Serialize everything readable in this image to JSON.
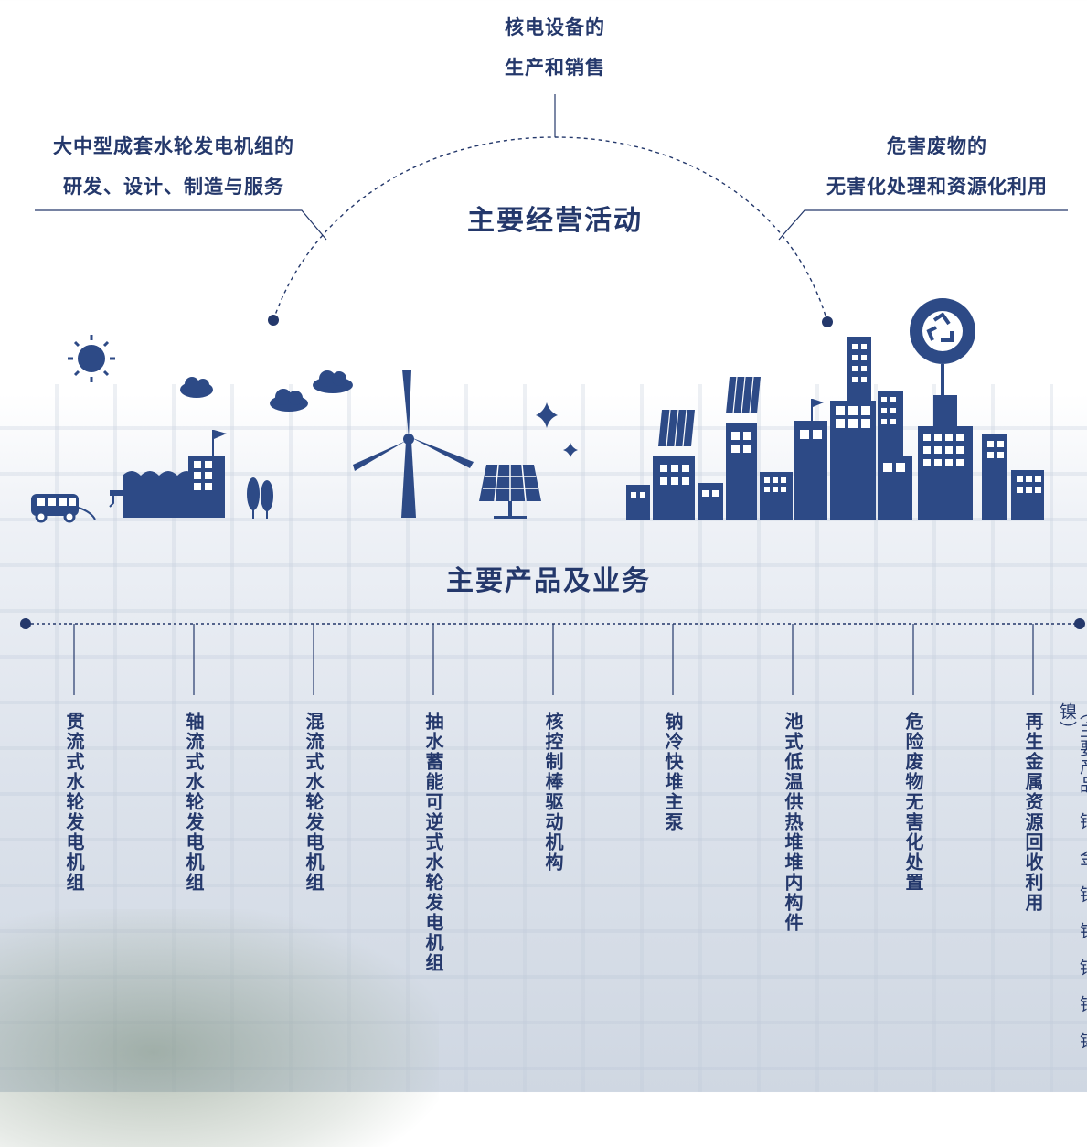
{
  "top_activity": {
    "line1": "核电设备的",
    "line2": "生产和销售"
  },
  "left_activity": {
    "line1": "大中型成套水轮发电机组的",
    "line2": "研发、设计、制造与服务"
  },
  "right_activity": {
    "line1": "危害废物的",
    "line2": "无害化处理和资源化利用"
  },
  "main_activities_title": "主要经营活动",
  "products_title": "主要产品及业务",
  "products": [
    "贯流式水轮发电机组",
    "轴流式水轮发电机组",
    "混流式水轮发电机组",
    "抽水蓄能可逆式水轮发电机组",
    "核控制棒驱动机构",
    "钠冷快堆主泵",
    "池式低温供热堆堆内构件",
    "危险废物无害化处置",
    "再生金属资源回收利用"
  ],
  "products_note": "（主要产品：铜、金、银、铂、钯、锌、锡、镍）",
  "colors": {
    "primary": "#24386b",
    "icon": "#2d4a86"
  }
}
